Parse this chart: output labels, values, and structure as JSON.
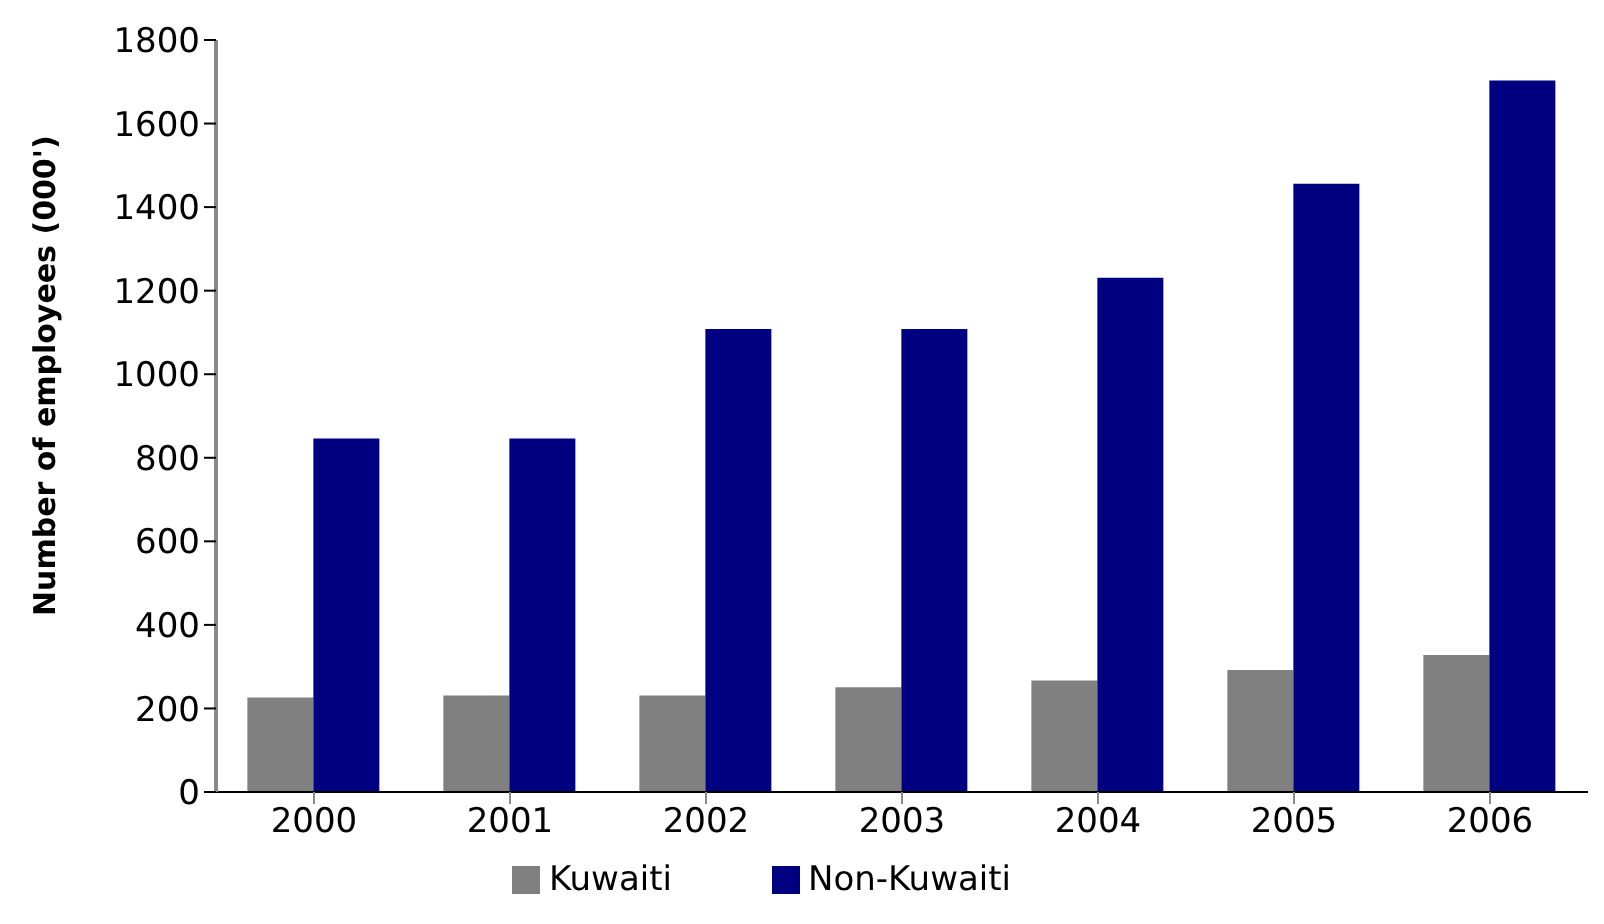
{
  "chart_data": {
    "type": "bar",
    "ylabel": "Number of employees (000')",
    "categories": [
      "2000",
      "2001",
      "2002",
      "2003",
      "2004",
      "2005",
      "2006"
    ],
    "series": [
      {
        "name": "Kuwaiti",
        "color": "#808080",
        "values": [
          226,
          231,
          231,
          251,
          267,
          292,
          328
        ]
      },
      {
        "name": "Non-Kuwaiti",
        "color": "#000080",
        "values": [
          846,
          846,
          1108,
          1108,
          1231,
          1456,
          1703
        ]
      }
    ],
    "ylim": [
      0,
      1800
    ],
    "yticks": [
      0,
      200,
      400,
      600,
      800,
      1000,
      1200,
      1400,
      1600,
      1800
    ],
    "grid": false,
    "legend": "bottom"
  }
}
